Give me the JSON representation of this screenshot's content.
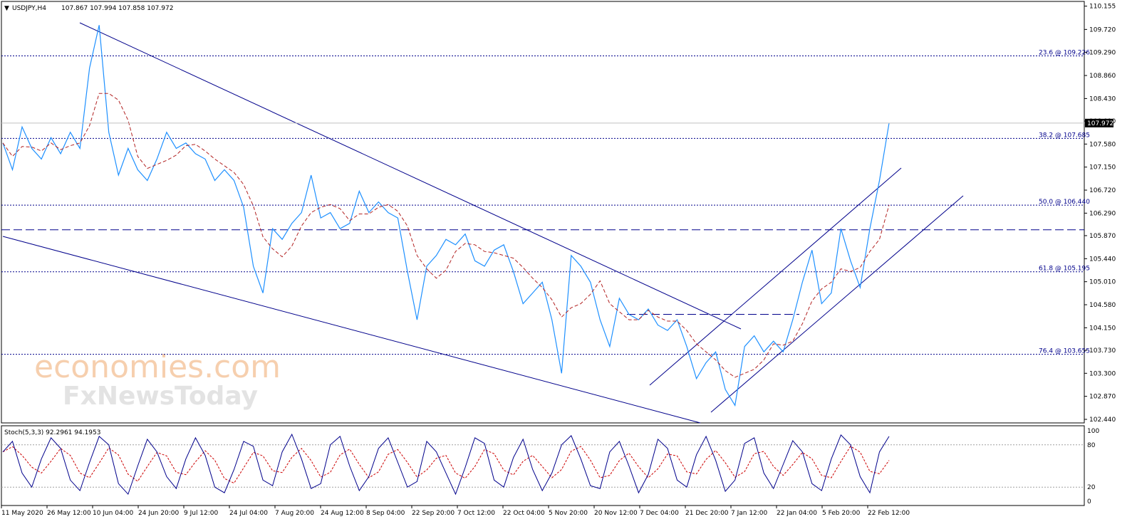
{
  "header": {
    "title": "USDJPY,H4",
    "ohlc": "107.867 107.994 107.858 107.972"
  },
  "watermark": {
    "brand": "economies.com",
    "sub": "FxNewsToday"
  },
  "colors": {
    "price": "#1e90ff",
    "ma": "#b22222",
    "trend": "#00008b",
    "fib": "#00008b",
    "stoch_main": "#00008b",
    "stoch_signal": "#cc0000",
    "grid": "#000000"
  },
  "chart_data": [
    {
      "type": "line",
      "title": "USDJPY,H4",
      "ylim": [
        102.44,
        110.15
      ],
      "y_ticks": [
        "110.155",
        "109.720",
        "109.290",
        "108.860",
        "108.430",
        "108.010",
        "107.580",
        "107.150",
        "106.720",
        "106.290",
        "105.870",
        "105.440",
        "105.010",
        "104.580",
        "104.150",
        "103.730",
        "103.300",
        "102.870",
        "102.440"
      ],
      "x_ticks": [
        "11 May 2020",
        "26 May 12:00",
        "10 Jun 04:00",
        "24 Jun 20:00",
        "9 Jul 12:00",
        "24 Jul 04:00",
        "7 Aug 20:00",
        "24 Aug 12:00",
        "8 Sep 04:00",
        "22 Sep 20:00",
        "7 Oct 12:00",
        "22 Oct 04:00",
        "5 Nov 20:00",
        "20 Nov 12:00",
        "7 Dec 04:00",
        "21 Dec 20:00",
        "7 Jan 12:00",
        "22 Jan 04:00",
        "5 Feb 20:00",
        "22 Feb 12:00"
      ],
      "current_price": "107.972",
      "fib_levels": [
        {
          "label": "23.6 @ 109.226",
          "value": 109.226
        },
        {
          "label": "38.2 @ 107.685",
          "value": 107.685
        },
        {
          "label": "50.0 @ 106.440",
          "value": 106.44
        },
        {
          "label": "61.8 @ 105.195",
          "value": 105.195
        },
        {
          "label": "76.4 @ 103.655",
          "value": 103.655
        }
      ],
      "horizontal_levels": [
        105.98,
        104.4
      ],
      "series": [
        {
          "values": [
            107.6,
            107.1,
            107.9,
            107.5,
            107.3,
            107.7,
            107.4,
            107.8,
            107.5,
            109.0,
            109.8,
            107.8,
            107.0,
            107.5,
            107.1,
            106.9,
            107.3,
            107.8,
            107.5,
            107.6,
            107.4,
            107.3,
            106.9,
            107.1,
            106.9,
            106.4,
            105.3,
            104.8,
            106.0,
            105.8,
            106.1,
            106.3,
            107.0,
            106.2,
            106.3,
            106.0,
            106.1,
            106.7,
            106.3,
            106.5,
            106.3,
            106.2,
            105.2,
            104.3,
            105.3,
            105.5,
            105.8,
            105.7,
            105.9,
            105.4,
            105.3,
            105.6,
            105.7,
            105.2,
            104.6,
            104.8,
            105.0,
            104.3,
            103.3,
            105.5,
            105.3,
            105.0,
            104.3,
            103.8,
            104.7,
            104.4,
            104.3,
            104.5,
            104.2,
            104.1,
            104.3,
            103.8,
            103.2,
            103.5,
            103.7,
            103.0,
            102.7,
            103.8,
            104.0,
            103.7,
            103.9,
            103.7,
            104.3,
            105.0,
            105.6,
            104.6,
            104.8,
            106.0,
            105.4,
            104.9,
            106.0,
            106.9,
            107.972
          ]
        }
      ]
    },
    {
      "type": "line",
      "title": "Stoch(5,3,3) 92.2961 94.1953",
      "ylim": [
        0,
        100
      ],
      "y_ticks": [
        "100",
        "80",
        "20",
        "0"
      ],
      "levels": [
        80,
        20
      ],
      "series": [
        {
          "values": [
            70,
            85,
            40,
            20,
            60,
            90,
            75,
            30,
            15,
            55,
            92,
            80,
            25,
            10,
            50,
            88,
            70,
            35,
            18,
            60,
            90,
            65,
            20,
            12,
            45,
            85,
            78,
            30,
            22,
            70,
            95,
            60,
            18,
            25,
            80,
            92,
            50,
            15,
            35,
            75,
            90,
            55,
            20,
            28,
            85,
            70,
            40,
            10,
            48,
            90,
            82,
            30,
            20,
            62,
            88,
            45,
            15,
            40,
            80,
            93,
            60,
            22,
            18,
            70,
            85,
            50,
            12,
            38,
            88,
            75,
            30,
            20,
            66,
            92,
            58,
            14,
            30,
            82,
            90,
            40,
            18,
            52,
            86,
            70,
            25,
            15,
            60,
            94,
            80,
            35,
            12,
            70,
            92
          ]
        }
      ]
    }
  ]
}
